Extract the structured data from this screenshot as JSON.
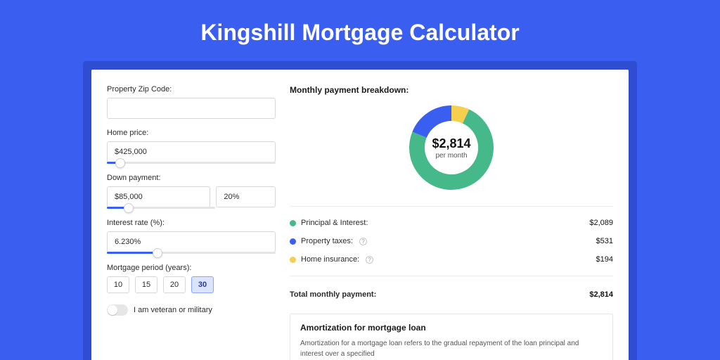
{
  "page": {
    "title": "Kingshill Mortgage Calculator"
  },
  "colors": {
    "page_bg": "#3a5ff0",
    "shell_bg": "#2f4dd0",
    "card_bg": "#ffffff",
    "accent": "#3a5ff0",
    "border": "#d8d8d8",
    "text": "#2b2b2b",
    "muted": "#555555"
  },
  "form": {
    "zip": {
      "label": "Property Zip Code:",
      "value": ""
    },
    "home_price": {
      "label": "Home price:",
      "value": "$425,000",
      "slider_pct": 8
    },
    "down_payment": {
      "label": "Down payment:",
      "amount": "$85,000",
      "pct": "20%",
      "slider_pct": 20
    },
    "interest_rate": {
      "label": "Interest rate (%):",
      "value": "6.230%",
      "slider_pct": 30
    },
    "period": {
      "label": "Mortgage period (years):",
      "options": [
        "10",
        "15",
        "20",
        "30"
      ],
      "selected": "30"
    },
    "veteran": {
      "label": "I am veteran or military",
      "checked": false
    }
  },
  "breakdown": {
    "title": "Monthly payment breakdown:",
    "center_amount": "$2,814",
    "center_sub": "per month",
    "items": [
      {
        "label": "Principal & Interest:",
        "value_text": "$2,089",
        "value_num": 2089,
        "color": "#46b98a",
        "info": false
      },
      {
        "label": "Property taxes:",
        "value_text": "$531",
        "value_num": 531,
        "color": "#3a5ff0",
        "info": true
      },
      {
        "label": "Home insurance:",
        "value_text": "$194",
        "value_num": 194,
        "color": "#f6cf4f",
        "info": true
      }
    ],
    "total": {
      "label": "Total monthly payment:",
      "value_text": "$2,814"
    },
    "donut": {
      "thickness": 22,
      "bg": "#ffffff"
    }
  },
  "amortization": {
    "title": "Amortization for mortgage loan",
    "body": "Amortization for a mortgage loan refers to the gradual repayment of the loan principal and interest over a specified"
  }
}
